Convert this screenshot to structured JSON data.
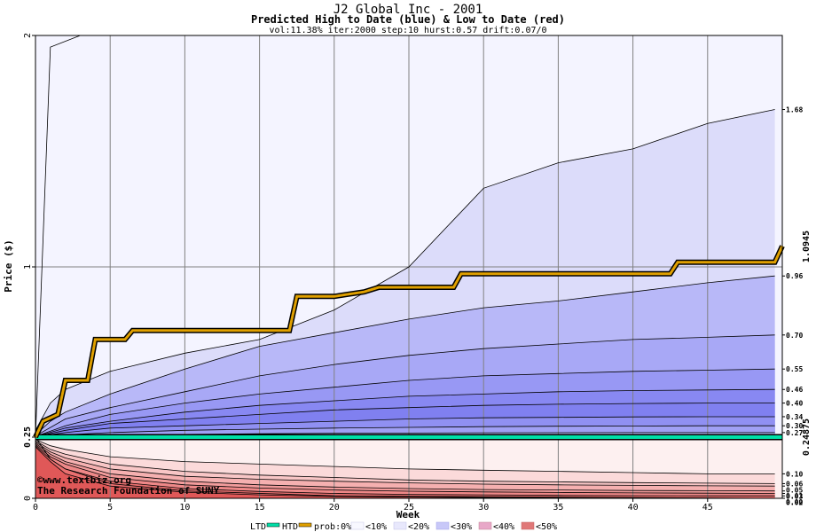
{
  "header": {
    "title": "J2 Global Inc - 2001",
    "subtitle": "Predicted High to Date (blue) &  Low to Date (red)",
    "params": "vol:11.38% iter:2000 step:10 hurst:0.57 drift:0.07/0"
  },
  "watermark": {
    "line1": "©www.textbiz.org",
    "line2": "The Research Foundation of SUNY"
  },
  "legend": {
    "ltd": "LTD",
    "htd": "HTD",
    "prob": "prob:0%",
    "items": [
      "<10%",
      "<20%",
      "<30%",
      "<40%",
      "<50%"
    ]
  },
  "colors": {
    "htd_line": "#e0a000",
    "ltd_line": "#00e0a8",
    "right_label_gold": "#b07800",
    "right_label_green": "#009878",
    "grid": "#808080"
  },
  "chart_data": {
    "type": "area",
    "title": "J2 Global Inc - 2001",
    "subtitle": "Predicted High to Date (blue) &  Low to Date (red)",
    "xlabel": "Week",
    "ylabel": "Price ($)",
    "xlim": [
      0,
      50
    ],
    "ylim": [
      0,
      2
    ],
    "x_ticks": [
      0,
      5,
      10,
      15,
      20,
      25,
      30,
      35,
      40,
      45
    ],
    "y_ticks": [
      0,
      0.25,
      1,
      2
    ],
    "start_price": 0.25,
    "highlight_labels": {
      "htd_last": "1.0945",
      "ltd_last": "0.24875"
    },
    "upper_bands": [
      {
        "end": 1.68,
        "label": "1.68",
        "points": [
          [
            0,
            0.28
          ],
          [
            1,
            0.4
          ],
          [
            2,
            0.46
          ],
          [
            5,
            0.54
          ],
          [
            10,
            0.62
          ],
          [
            15,
            0.68
          ],
          [
            20,
            0.81
          ],
          [
            25,
            1.0
          ],
          [
            30,
            1.34
          ],
          [
            35,
            1.45
          ],
          [
            40,
            1.51
          ],
          [
            45,
            1.62
          ],
          [
            49.5,
            1.68
          ]
        ]
      },
      {
        "end": 0.96,
        "label": "0.96",
        "points": [
          [
            0,
            0.26
          ],
          [
            1,
            0.32
          ],
          [
            2,
            0.36
          ],
          [
            5,
            0.44
          ],
          [
            10,
            0.55
          ],
          [
            15,
            0.65
          ],
          [
            20,
            0.71
          ],
          [
            25,
            0.77
          ],
          [
            30,
            0.82
          ],
          [
            35,
            0.85
          ],
          [
            40,
            0.89
          ],
          [
            45,
            0.93
          ],
          [
            49.5,
            0.96
          ]
        ]
      },
      {
        "end": 0.7,
        "label": "0.70",
        "points": [
          [
            0,
            0.255
          ],
          [
            2,
            0.33
          ],
          [
            5,
            0.38
          ],
          [
            10,
            0.45
          ],
          [
            15,
            0.52
          ],
          [
            20,
            0.57
          ],
          [
            25,
            0.61
          ],
          [
            30,
            0.64
          ],
          [
            35,
            0.66
          ],
          [
            40,
            0.68
          ],
          [
            45,
            0.69
          ],
          [
            49.5,
            0.7
          ]
        ]
      },
      {
        "end": 0.55,
        "label": "0.55",
        "points": [
          [
            0,
            0.253
          ],
          [
            2,
            0.3
          ],
          [
            5,
            0.35
          ],
          [
            10,
            0.4
          ],
          [
            15,
            0.44
          ],
          [
            20,
            0.47
          ],
          [
            25,
            0.5
          ],
          [
            30,
            0.52
          ],
          [
            35,
            0.53
          ],
          [
            40,
            0.54
          ],
          [
            45,
            0.545
          ],
          [
            49.5,
            0.55
          ]
        ]
      },
      {
        "end": 0.46,
        "label": "0.46",
        "points": [
          [
            0,
            0.252
          ],
          [
            2,
            0.29
          ],
          [
            5,
            0.32
          ],
          [
            10,
            0.36
          ],
          [
            15,
            0.39
          ],
          [
            20,
            0.41
          ],
          [
            25,
            0.43
          ],
          [
            30,
            0.44
          ],
          [
            35,
            0.45
          ],
          [
            40,
            0.455
          ],
          [
            45,
            0.458
          ],
          [
            49.5,
            0.46
          ]
        ]
      },
      {
        "end": 0.4,
        "label": "0.40",
        "points": [
          [
            0,
            0.251
          ],
          [
            2,
            0.28
          ],
          [
            5,
            0.31
          ],
          [
            10,
            0.33
          ],
          [
            15,
            0.35
          ],
          [
            20,
            0.37
          ],
          [
            25,
            0.38
          ],
          [
            30,
            0.39
          ],
          [
            35,
            0.395
          ],
          [
            40,
            0.398
          ],
          [
            45,
            0.4
          ],
          [
            49.5,
            0.4
          ]
        ]
      },
      {
        "end": 0.34,
        "label": "0.34",
        "points": [
          [
            0,
            0.251
          ],
          [
            2,
            0.27
          ],
          [
            5,
            0.29
          ],
          [
            10,
            0.3
          ],
          [
            15,
            0.31
          ],
          [
            20,
            0.32
          ],
          [
            25,
            0.33
          ],
          [
            30,
            0.335
          ],
          [
            35,
            0.337
          ],
          [
            40,
            0.339
          ],
          [
            45,
            0.34
          ],
          [
            49.5,
            0.34
          ]
        ]
      },
      {
        "end": 0.3,
        "label": "0.30",
        "points": [
          [
            0,
            0.25
          ],
          [
            2,
            0.26
          ],
          [
            5,
            0.27
          ],
          [
            10,
            0.28
          ],
          [
            15,
            0.285
          ],
          [
            20,
            0.29
          ],
          [
            25,
            0.293
          ],
          [
            30,
            0.296
          ],
          [
            35,
            0.298
          ],
          [
            40,
            0.299
          ],
          [
            45,
            0.3
          ],
          [
            49.5,
            0.3
          ]
        ]
      },
      {
        "end": 0.27,
        "label": "0.27",
        "points": [
          [
            0,
            0.25
          ],
          [
            5,
            0.258
          ],
          [
            10,
            0.262
          ],
          [
            15,
            0.265
          ],
          [
            20,
            0.267
          ],
          [
            25,
            0.268
          ],
          [
            30,
            0.269
          ],
          [
            40,
            0.27
          ],
          [
            49.5,
            0.27
          ]
        ]
      }
    ],
    "lower_bands": [
      {
        "end": 0.1,
        "label": "0.10",
        "points": [
          [
            0,
            0.24
          ],
          [
            1,
            0.215
          ],
          [
            2,
            0.2
          ],
          [
            5,
            0.17
          ],
          [
            10,
            0.15
          ],
          [
            15,
            0.14
          ],
          [
            20,
            0.13
          ],
          [
            25,
            0.12
          ],
          [
            30,
            0.115
          ],
          [
            35,
            0.11
          ],
          [
            40,
            0.105
          ],
          [
            45,
            0.1
          ],
          [
            49.5,
            0.1
          ]
        ]
      },
      {
        "end": 0.06,
        "label": "0.06",
        "points": [
          [
            0,
            0.235
          ],
          [
            1,
            0.2
          ],
          [
            2,
            0.18
          ],
          [
            5,
            0.14
          ],
          [
            10,
            0.11
          ],
          [
            15,
            0.095
          ],
          [
            20,
            0.085
          ],
          [
            25,
            0.075
          ],
          [
            30,
            0.07
          ],
          [
            35,
            0.067
          ],
          [
            40,
            0.064
          ],
          [
            45,
            0.062
          ],
          [
            49.5,
            0.06
          ]
        ]
      },
      {
        "end": 0.05,
        "label": "0.05",
        "points": [
          [
            0,
            0.23
          ],
          [
            1,
            0.19
          ],
          [
            2,
            0.165
          ],
          [
            5,
            0.12
          ],
          [
            10,
            0.09
          ],
          [
            15,
            0.078
          ],
          [
            20,
            0.07
          ],
          [
            25,
            0.063
          ],
          [
            30,
            0.058
          ],
          [
            35,
            0.055
          ],
          [
            40,
            0.053
          ],
          [
            45,
            0.051
          ],
          [
            49.5,
            0.05
          ]
        ]
      },
      {
        "end": 0.03,
        "label": "0.03",
        "points": [
          [
            0,
            0.225
          ],
          [
            1,
            0.18
          ],
          [
            2,
            0.15
          ],
          [
            5,
            0.1
          ],
          [
            10,
            0.07
          ],
          [
            15,
            0.055
          ],
          [
            20,
            0.046
          ],
          [
            25,
            0.04
          ],
          [
            30,
            0.036
          ],
          [
            35,
            0.034
          ],
          [
            40,
            0.032
          ],
          [
            45,
            0.031
          ],
          [
            49.5,
            0.03
          ]
        ]
      },
      {
        "end": 0.02,
        "label": "0.02",
        "points": [
          [
            0,
            0.22
          ],
          [
            1,
            0.17
          ],
          [
            2,
            0.14
          ],
          [
            5,
            0.085
          ],
          [
            10,
            0.055
          ],
          [
            15,
            0.042
          ],
          [
            20,
            0.034
          ],
          [
            25,
            0.029
          ],
          [
            30,
            0.026
          ],
          [
            35,
            0.024
          ],
          [
            40,
            0.022
          ],
          [
            45,
            0.021
          ],
          [
            49.5,
            0.02
          ]
        ]
      },
      {
        "end": 0.01,
        "label": "0.01",
        "points": [
          [
            0,
            0.215
          ],
          [
            1,
            0.16
          ],
          [
            2,
            0.12
          ],
          [
            5,
            0.07
          ],
          [
            10,
            0.04
          ],
          [
            15,
            0.028
          ],
          [
            20,
            0.02
          ],
          [
            25,
            0.016
          ],
          [
            30,
            0.014
          ],
          [
            35,
            0.012
          ],
          [
            40,
            0.011
          ],
          [
            45,
            0.01
          ],
          [
            49.5,
            0.01
          ]
        ]
      },
      {
        "end": 0.0,
        "label": "0.00",
        "points": [
          [
            0,
            0.21
          ],
          [
            1,
            0.15
          ],
          [
            2,
            0.1
          ],
          [
            5,
            0.05
          ],
          [
            10,
            0.025
          ],
          [
            15,
            0.014
          ],
          [
            20,
            0.008
          ],
          [
            25,
            0.005
          ],
          [
            30,
            0.003
          ],
          [
            40,
            0.001
          ],
          [
            49.5,
            0.0
          ]
        ]
      }
    ],
    "htd_series": {
      "name": "HTD",
      "points": [
        [
          0,
          0.25
        ],
        [
          0.5,
          0.32
        ],
        [
          1.5,
          0.35
        ],
        [
          2,
          0.5
        ],
        [
          3.5,
          0.5
        ],
        [
          4,
          0.68
        ],
        [
          6,
          0.68
        ],
        [
          6.5,
          0.72
        ],
        [
          17,
          0.72
        ],
        [
          17.5,
          0.87
        ],
        [
          20,
          0.87
        ],
        [
          21,
          0.88
        ],
        [
          22,
          0.89
        ],
        [
          23,
          0.91
        ],
        [
          28,
          0.91
        ],
        [
          28.5,
          0.97
        ],
        [
          42.5,
          0.97
        ],
        [
          43,
          1.02
        ],
        [
          49.5,
          1.02
        ],
        [
          50,
          1.09
        ]
      ]
    },
    "ltd_series": {
      "name": "LTD",
      "points": [
        [
          0,
          0.25
        ],
        [
          50,
          0.25
        ]
      ]
    },
    "min_envelope": {
      "points": [
        [
          0,
          0.25
        ],
        [
          1,
          0.16
        ],
        [
          2,
          0.12
        ],
        [
          5,
          0.06
        ],
        [
          10,
          0.03
        ],
        [
          20,
          0.01
        ],
        [
          49.5,
          0.0
        ]
      ]
    },
    "max_envelope": {
      "points": [
        [
          0,
          0.25
        ],
        [
          1,
          1.95
        ],
        [
          3,
          2.0
        ]
      ]
    }
  }
}
